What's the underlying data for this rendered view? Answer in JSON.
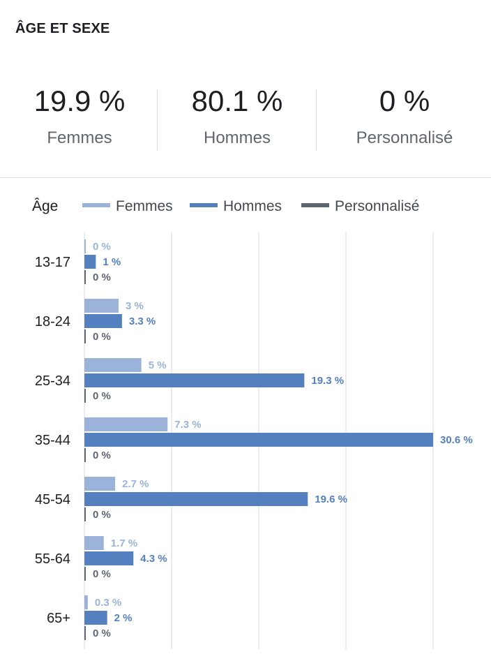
{
  "section_title": "ÂGE ET SEXE",
  "summary": [
    {
      "value": "19.9 %",
      "label": "Femmes"
    },
    {
      "value": "80.1 %",
      "label": "Hommes"
    },
    {
      "value": "0 %",
      "label": "Personnalisé"
    }
  ],
  "colors": {
    "femmes": "#9bb3d9",
    "hommes": "#5580bf",
    "perso": "#5f6673",
    "grid": "#e4e6ea"
  },
  "chart_data": {
    "type": "bar",
    "orientation": "horizontal",
    "ylabel": "Âge",
    "categories": [
      "13-17",
      "18-24",
      "25-34",
      "35-44",
      "45-54",
      "55-64",
      "65+"
    ],
    "series": [
      {
        "name": "Femmes",
        "values": [
          0,
          3,
          5,
          7.3,
          2.7,
          1.7,
          0.3
        ],
        "labels": [
          "0 %",
          "3 %",
          "5 %",
          "7.3 %",
          "2.7 %",
          "1.7 %",
          "0.3 %"
        ]
      },
      {
        "name": "Hommes",
        "values": [
          1,
          3.3,
          19.3,
          30.6,
          19.6,
          4.3,
          2
        ],
        "labels": [
          "1 %",
          "3.3 %",
          "19.3 %",
          "30.6 %",
          "19.6 %",
          "4.3 %",
          "2 %"
        ]
      },
      {
        "name": "Personnalisé",
        "values": [
          0,
          0,
          0,
          0,
          0,
          0,
          0
        ],
        "labels": [
          "0 %",
          "0 %",
          "0 %",
          "0 %",
          "0 %",
          "0 %",
          "0 %"
        ]
      }
    ],
    "xlim": [
      0,
      30.6
    ],
    "grid": true,
    "legend": "top"
  }
}
